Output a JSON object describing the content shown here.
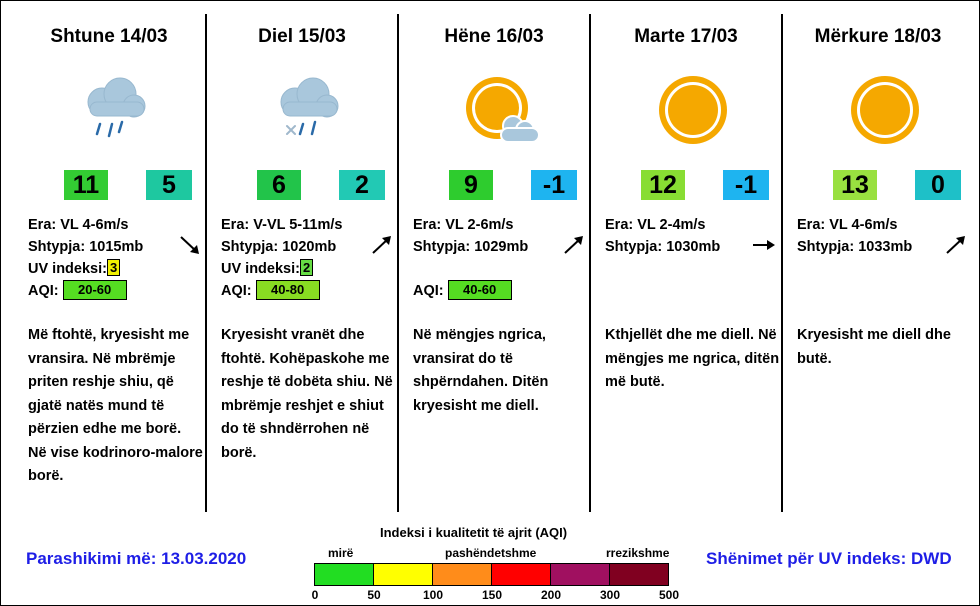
{
  "days": [
    {
      "title": "Shtune 14/03",
      "icon": "rain-cloud-icon",
      "tmax": "11",
      "tmin": "5",
      "tmax_color": "#33cc33",
      "tmin_color": "#1ec8a0",
      "wind_label": "Era:",
      "wind": "VL 4-6m/s",
      "pressure_label": "Shtypja:",
      "pressure": "1015mb",
      "uv_label": "UV indeksi:",
      "uv": "3",
      "aqi_label": "AQI:",
      "aqi": "20-60",
      "desc": "Më ftohtë, kryesisht me vransira.  Në mbrëmje priten reshje shiu, që gjatë natës mund të përzien edhe me borë.  Në vise kodrinoro-malore borë."
    },
    {
      "title": "Diel 15/03",
      "icon": "sleet-cloud-icon",
      "tmax": "6",
      "tmin": "2",
      "tmax_color": "#22c44a",
      "tmin_color": "#22c9b4",
      "wind_label": "Era:",
      "wind": "V-VL 5-11m/s",
      "pressure_label": "Shtypja:",
      "pressure": "1020mb",
      "uv_label": "UV indeksi:",
      "uv": "2",
      "aqi_label": "AQI:",
      "aqi": "40-80",
      "desc": "Kryesisht vranët dhe ftohtë.  Kohëpaskohe me reshje të dobëta shiu.  Në mbrëmje reshjet e shiut do të shndërrohen në borë."
    },
    {
      "title": "Hëne 16/03",
      "icon": "sun-cloud-icon",
      "tmax": "9",
      "tmin": "-1",
      "tmax_color": "#2ecc2e",
      "tmin_color": "#1eb4f0",
      "wind_label": "Era:",
      "wind": "VL 2-6m/s",
      "pressure_label": "Shtypja:",
      "pressure": "1029mb",
      "aqi_label": "AQI:",
      "aqi": "40-60",
      "desc": "Në mëngjes ngrica, vransirat do të shpërndahen.  Ditën kryesisht me diell."
    },
    {
      "title": "Marte 17/03",
      "icon": "sun-icon",
      "tmax": "12",
      "tmin": "-1",
      "tmax_color": "#88dd33",
      "tmin_color": "#1eb4f0",
      "wind_label": "Era:",
      "wind": "VL 2-4m/s",
      "pressure_label": "Shtypja:",
      "pressure": "1030mb",
      "desc": "Kthjellët dhe me diell.  Në mëngjes me ngrica, ditën më butë."
    },
    {
      "title": "Mërkure 18/03",
      "icon": "sun-icon",
      "tmax": "13",
      "tmin": "0",
      "tmax_color": "#99e040",
      "tmin_color": "#1ec0c8",
      "wind_label": "Era:",
      "wind": "VL 4-6m/s",
      "pressure_label": "Shtypja:",
      "pressure": "1033mb",
      "desc": "Kryesisht me diell dhe butë."
    }
  ],
  "wind_arrows": [
    "arrow-down-right-icon",
    "arrow-up-right-icon",
    "arrow-up-right-icon",
    "arrow-right-icon",
    "arrow-up-right-icon"
  ],
  "uv_colors": {
    "3": "#f0f000",
    "2": "#66dd44"
  },
  "aqi_box_colors": {
    "20-60": "#55dd22",
    "40-80": "#88dd22",
    "40-60": "#55dd22"
  },
  "footer": {
    "forecast": "Parashikimi më: 13.03.2020",
    "uv_note": "Shënimet për UV indeks: DWD"
  },
  "aqi_scale": {
    "title": "Indeksi i kualitetit të ajrit (AQI)",
    "labels": [
      "mirë",
      "pashëndetshme",
      "rrezikshme"
    ],
    "ticks": [
      "0",
      "50",
      "100",
      "150",
      "200",
      "300",
      "500"
    ],
    "colors": [
      "#22dd22",
      "#ffff00",
      "#ff8c1a",
      "#ff0000",
      "#a01060",
      "#800020"
    ]
  }
}
